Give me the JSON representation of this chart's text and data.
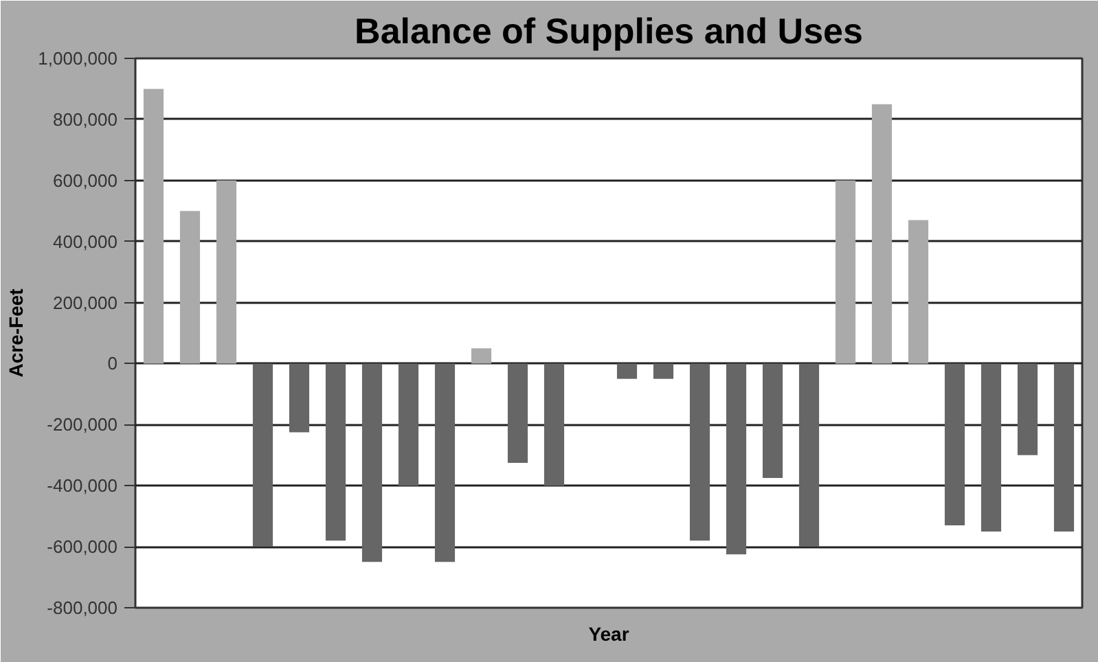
{
  "chart_data": {
    "type": "bar",
    "title": "Balance of Supplies and Uses",
    "xlabel": "Year",
    "ylabel": "Acre-Feet",
    "categories": [
      null,
      null,
      null,
      null,
      null,
      null,
      null,
      null,
      null,
      null,
      null,
      null,
      null,
      null,
      null,
      null,
      null,
      null,
      null,
      null,
      null,
      null,
      null,
      null,
      null,
      null
    ],
    "values": [
      900000,
      500000,
      600000,
      -600000,
      -225000,
      -580000,
      -650000,
      -400000,
      -650000,
      50000,
      -325000,
      -400000,
      null,
      -50000,
      -50000,
      -580000,
      -625000,
      -375000,
      -600000,
      600000,
      850000,
      470000,
      -530000,
      -550000,
      -300000,
      -550000
    ],
    "colors": [
      "#aaaaaa",
      "#aaaaaa",
      "#aaaaaa",
      "#666666",
      "#666666",
      "#666666",
      "#666666",
      "#666666",
      "#666666",
      "#aaaaaa",
      "#666666",
      "#666666",
      "#666666",
      "#666666",
      "#666666",
      "#666666",
      "#666666",
      "#666666",
      "#666666",
      "#aaaaaa",
      "#aaaaaa",
      "#aaaaaa",
      "#666666",
      "#666666",
      "#666666",
      "#666666"
    ],
    "ylim": [
      -800000,
      1000000
    ],
    "yticks": [
      {
        "value": -800000,
        "label": "-800,000"
      },
      {
        "value": -600000,
        "label": "-600,000"
      },
      {
        "value": -400000,
        "label": "-400,000"
      },
      {
        "value": -200000,
        "label": "-200,000"
      },
      0,
      {
        "value": 200000,
        "label": "200,000"
      },
      {
        "value": 400000,
        "label": "400,000"
      },
      {
        "value": 600000,
        "label": "600,000"
      },
      {
        "value": 800000,
        "label": "800,000"
      },
      {
        "value": 1000000,
        "label": "1,000,000"
      }
    ],
    "grid": "y",
    "tick_labels": "y"
  }
}
